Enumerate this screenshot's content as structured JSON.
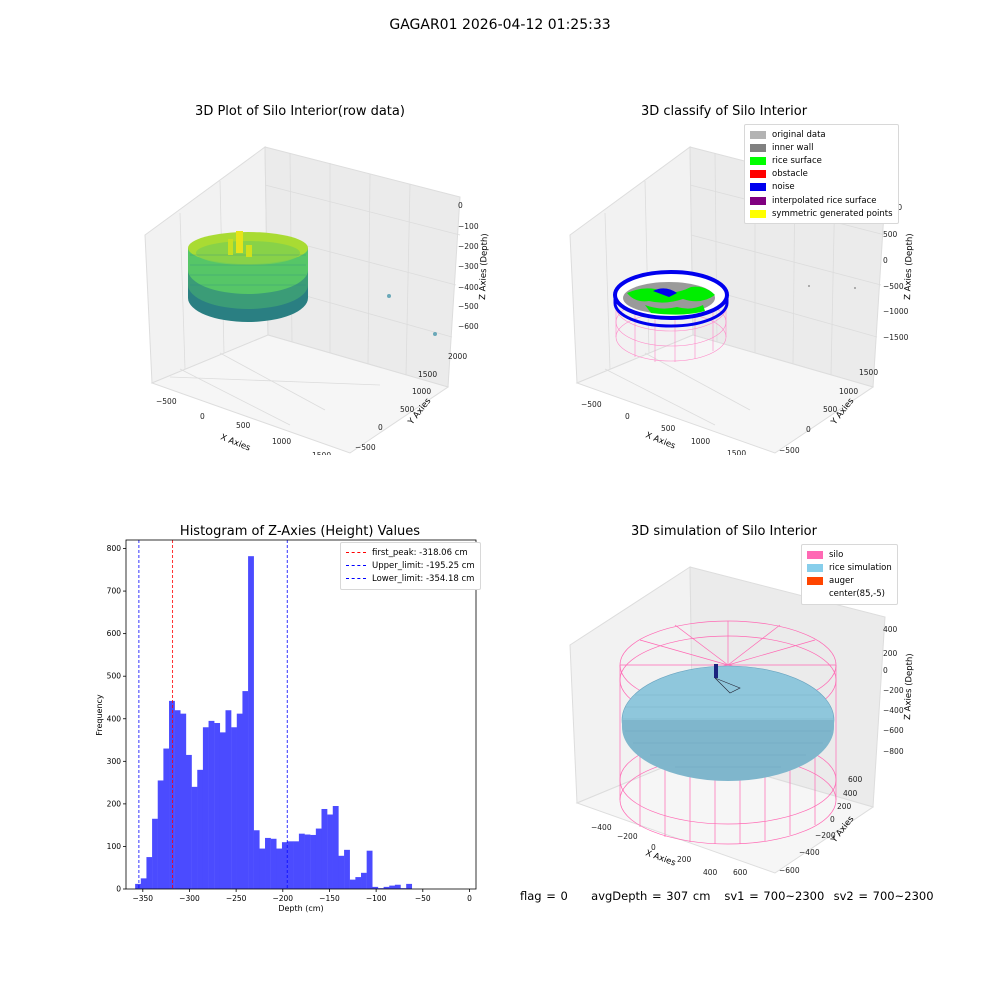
{
  "figure": {
    "suptitle": "GAGAR01 2026-04-12 01:25:33",
    "footer": {
      "flag": "flag = 0",
      "avg_depth": "avgDepth = 307 cm",
      "sv1": "sv1 = 700~2300",
      "sv2": "sv2 = 700~2300"
    }
  },
  "colors": {
    "original": "#b3b3b3",
    "inner_wall": "#808080",
    "rice_surface": "#00ff00",
    "obstacle": "#ff0000",
    "noise": "#0000ee",
    "interpolated": "#800080",
    "symmetric": "#ffff00",
    "silo": "#ff69b4",
    "rice_sim": "#87ceeb",
    "auger": "#ff4500",
    "hist_bar": "#4b4bff"
  },
  "chart_data": [
    {
      "type": "scatter3d",
      "title": "3D Plot of Silo Interior(row data)",
      "xlabel": "X Axies",
      "ylabel": "Y Axies",
      "zlabel": "Z Axies (Depth)",
      "x_ticks": [
        "−500",
        "0",
        "500",
        "1000",
        "1500"
      ],
      "y_ticks": [
        "−500",
        "0",
        "500",
        "1000",
        "1500",
        "2000"
      ],
      "z_ticks": [
        "0",
        "−100",
        "−200",
        "−300",
        "−400",
        "−500",
        "−600"
      ],
      "colormap": "viridis"
    },
    {
      "type": "scatter3d",
      "title": "3D classify of Silo Interior",
      "xlabel": "X Axies",
      "ylabel": "Y Axies",
      "zlabel": "Z Axies (Depth)",
      "x_ticks": [
        "−500",
        "0",
        "500",
        "1000",
        "1500"
      ],
      "y_ticks": [
        "−500",
        "0",
        "500",
        "1000",
        "1500"
      ],
      "z_ticks": [
        "1000",
        "500",
        "0",
        "−500",
        "−1000",
        "−1500"
      ],
      "legend_position": "top-right",
      "legend": [
        {
          "label": "original data",
          "color_key": "original"
        },
        {
          "label": "inner wall",
          "color_key": "inner_wall"
        },
        {
          "label": "rice surface",
          "color_key": "rice_surface"
        },
        {
          "label": "obstacle",
          "color_key": "obstacle"
        },
        {
          "label": "noise",
          "color_key": "noise"
        },
        {
          "label": "interpolated rice surface",
          "color_key": "interpolated"
        },
        {
          "label": "symmetric generated points",
          "color_key": "symmetric"
        }
      ]
    },
    {
      "type": "bar",
      "title": "Histogram of Z-Axies (Height) Values",
      "xlabel": "Depth (cm)",
      "ylabel": "Frequency",
      "xlim": [
        -368,
        7
      ],
      "ylim": [
        0,
        820
      ],
      "x_ticks": [
        -350,
        -300,
        -250,
        -200,
        -150,
        -100,
        -50,
        0
      ],
      "x_tick_labels": [
        "−350",
        "−300",
        "−250",
        "−200",
        "−150",
        "−100",
        "−50",
        "0"
      ],
      "y_ticks": [
        0,
        100,
        200,
        300,
        400,
        500,
        600,
        700,
        800
      ],
      "y_tick_labels": [
        "0",
        "100",
        "200",
        "300",
        "400",
        "500",
        "600",
        "700",
        "800"
      ],
      "bin_start": -358.2,
      "bin_width": 6.05,
      "values": [
        12,
        25,
        75,
        165,
        255,
        330,
        442,
        420,
        412,
        315,
        240,
        280,
        380,
        395,
        390,
        368,
        420,
        380,
        412,
        465,
        782,
        138,
        95,
        120,
        118,
        95,
        110,
        112,
        112,
        130,
        128,
        127,
        142,
        188,
        175,
        195,
        78,
        92,
        22,
        28,
        38,
        90,
        5,
        2,
        5,
        8,
        10,
        2,
        12
      ],
      "legend_position": "top-right",
      "vlines": [
        {
          "x": -318.06,
          "color": "#ff0000",
          "label": "first_peak: -318.06 cm"
        },
        {
          "x": -195.25,
          "color": "#0000ff",
          "label": "Upper_limit: -195.25 cm"
        },
        {
          "x": -354.18,
          "color": "#0000ff",
          "label": "Lower_limit: -354.18 cm"
        }
      ]
    },
    {
      "type": "surface3d",
      "title": "3D simulation of Silo Interior",
      "xlabel": "X Axies",
      "ylabel": "Y Axies",
      "zlabel": "Z Axies (Depth)",
      "x_ticks": [
        "−400",
        "−200",
        "0",
        "200",
        "400",
        "600"
      ],
      "y_ticks": [
        "−600",
        "−400",
        "−200",
        "0",
        "200",
        "400",
        "600"
      ],
      "z_ticks": [
        "400",
        "200",
        "0",
        "−200",
        "−400",
        "−600",
        "−800"
      ],
      "legend_position": "top-right",
      "legend": [
        {
          "label": "silo",
          "color_key": "silo"
        },
        {
          "label": "rice simulation",
          "color_key": "rice_sim"
        },
        {
          "label": "auger",
          "color_key": "auger"
        },
        {
          "label": "center(85,-5)",
          "color_key": ""
        }
      ]
    }
  ]
}
